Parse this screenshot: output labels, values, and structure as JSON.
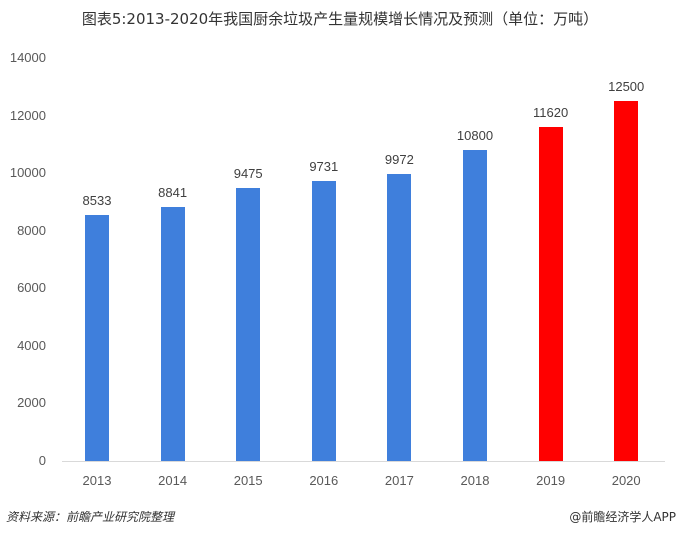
{
  "title": "图表5:2013-2020年我国厨余垃圾产生量规模增长情况及预测（单位：万吨）",
  "chart_data": {
    "type": "bar",
    "title": "图表5:2013-2020年我国厨余垃圾产生量规模增长情况及预测（单位：万吨）",
    "xlabel": "",
    "ylabel": "万吨",
    "categories": [
      "2013",
      "2014",
      "2015",
      "2016",
      "2017",
      "2018",
      "2019",
      "2020"
    ],
    "values": [
      8533,
      8841,
      9475,
      9731,
      9972,
      10800,
      11620,
      12500
    ],
    "colors": [
      "#3f7fdc",
      "#3f7fdc",
      "#3f7fdc",
      "#3f7fdc",
      "#3f7fdc",
      "#3f7fdc",
      "#ff0000",
      "#ff0000"
    ],
    "series_notes": {
      "actual": "2013-2018 (blue)",
      "forecast": "2019-2020 (red)"
    },
    "ylim": [
      0,
      14000
    ],
    "yticks": [
      0,
      2000,
      4000,
      6000,
      8000,
      10000,
      12000,
      14000
    ],
    "grid": false,
    "data_labels": true
  },
  "yticks": [
    "0",
    "2000",
    "4000",
    "6000",
    "8000",
    "10000",
    "12000",
    "14000"
  ],
  "footer": {
    "source": "资料来源：前瞻产业研究院整理",
    "credit": "@前瞻经济学人APP"
  }
}
